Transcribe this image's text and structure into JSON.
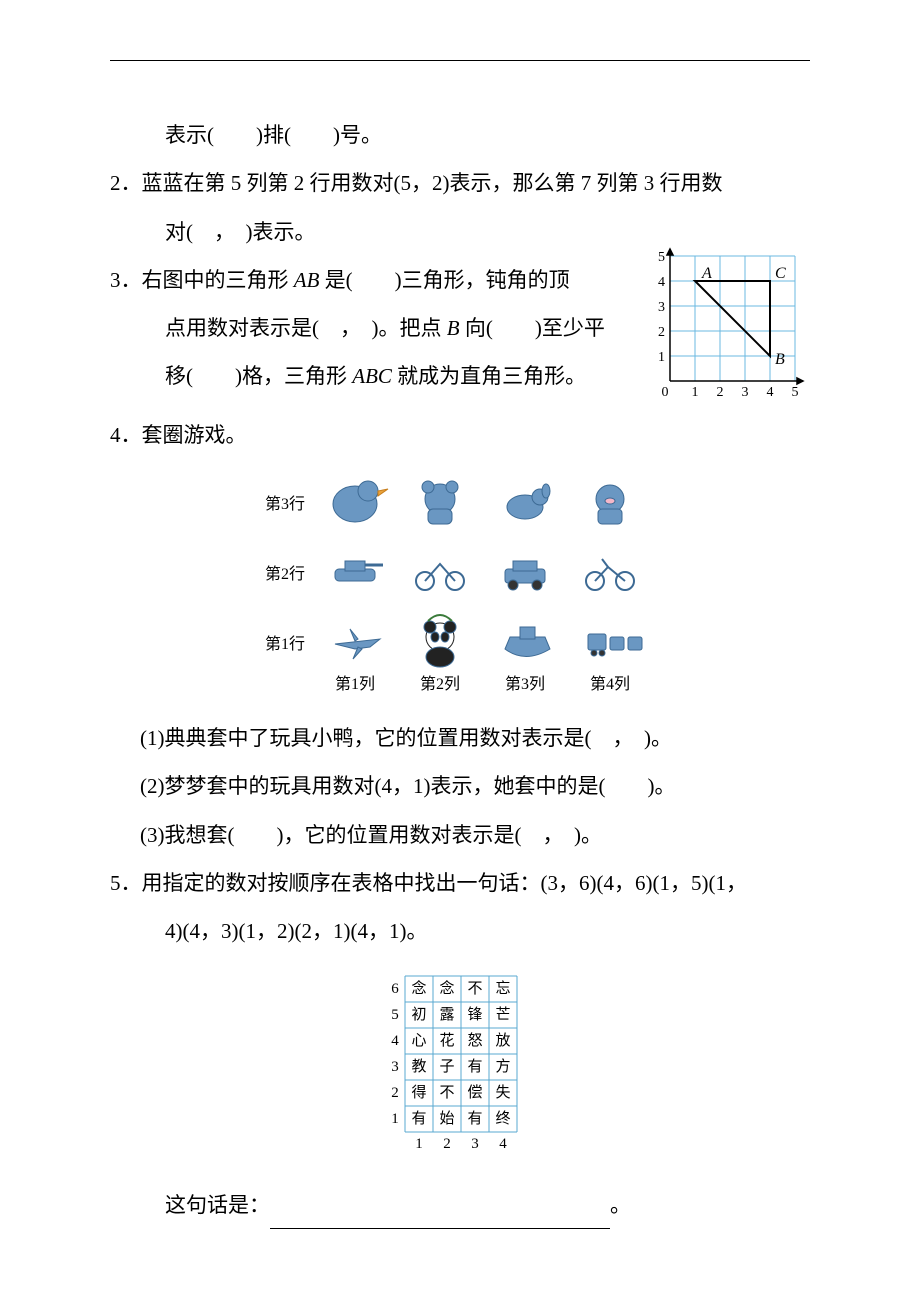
{
  "q1b": {
    "text": "表示(　　)排(　　)号。"
  },
  "q2": {
    "text": "2．蓝蓝在第 5 列第 2 行用数对(5，2)表示，那么第 7 列第 3 行用数",
    "cont": "对(　，　)表示。"
  },
  "q3": {
    "part1_a": "3．右图中的三角形 ",
    "ab": "AB",
    "part1_b": " 是(　　)三角形，钝角的顶",
    "part2_a": "点用数对表示是(　，　)。把点 ",
    "b": "B",
    "part2_b": " 向(　　)至少平",
    "part3_a": "移(　　)格，三角形 ",
    "abc": "ABC",
    "part3_b": " 就成为直角三角形。"
  },
  "q4": {
    "title": "4．套圈游戏。",
    "rows": [
      "第3行",
      "第2行",
      "第1行"
    ],
    "cols": [
      "第1列",
      "第2列",
      "第3列",
      "第4列"
    ],
    "items": [
      [
        "小鸭",
        "小熊",
        "小狗",
        "小猪"
      ],
      [
        "坦克",
        "电动车",
        "汽车",
        "摩托车"
      ],
      [
        "飞机",
        "熊猫",
        "轮船",
        "火车"
      ]
    ],
    "sub1": "(1)典典套中了玩具小鸭，它的位置用数对表示是(　，　)。",
    "sub2": "(2)梦梦套中的玩具用数对(4，1)表示，她套中的是(　　)。",
    "sub3": "(3)我想套(　　)，它的位置用数对表示是(　，　)。"
  },
  "q5": {
    "part1": "5．用指定的数对按顺序在表格中找出一句话：(3，6)(4，6)(1，5)(1，",
    "part2": "4)(4，3)(1，2)(2，1)(4，1)。",
    "row_labels": [
      "6",
      "5",
      "4",
      "3",
      "2",
      "1"
    ],
    "col_labels": [
      "1",
      "2",
      "3",
      "4"
    ],
    "cells": [
      [
        "念",
        "念",
        "不",
        "忘"
      ],
      [
        "初",
        "露",
        "锋",
        "芒"
      ],
      [
        "心",
        "花",
        "怒",
        "放"
      ],
      [
        "教",
        "子",
        "有",
        "方"
      ],
      [
        "得",
        "不",
        "偿",
        "失"
      ],
      [
        "有",
        "始",
        "有",
        "终"
      ]
    ],
    "answer_label": "这句话是：",
    "period": "。"
  },
  "triangle_grid": {
    "xticks": [
      "0",
      "1",
      "2",
      "3",
      "4",
      "5"
    ],
    "yticks": [
      "1",
      "2",
      "3",
      "4",
      "5"
    ],
    "A": "A",
    "B": "B",
    "C": "C",
    "grid_color": "#6bb8e0",
    "line_color": "#000000",
    "bg": "#ffffff",
    "A_pos": [
      1,
      4
    ],
    "B_pos": [
      4,
      1
    ],
    "C_pos": [
      4,
      4
    ]
  },
  "colors": {
    "text": "#000000",
    "table_border": "#5aa8d0",
    "icon_tint": "#5a8ab5"
  }
}
